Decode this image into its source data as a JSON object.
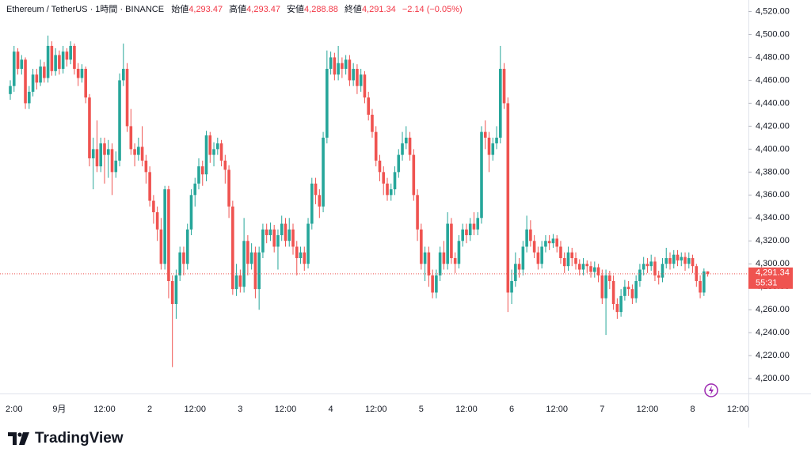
{
  "chart_data": {
    "type": "candlestick",
    "header": {
      "symbol": "Ethereum / TetherUS · 1時間 · BINANCE",
      "open_label": "始値",
      "open_value": "4,293.47",
      "high_label": "高値",
      "high_value": "4,293.47",
      "low_label": "安値",
      "low_value": "4,288.88",
      "close_label": "終値",
      "close_value": "4,291.34",
      "change": "−2.14 (−0.05%)"
    },
    "last_price_label": "4,291.34",
    "countdown": "55:31",
    "up_color": "#26a69a",
    "down_color": "#ef5350",
    "ylim": [
      4187,
      4530
    ],
    "yticks": [
      {
        "value": 4200,
        "label": "4,200.00"
      },
      {
        "value": 4220,
        "label": "4,220.00"
      },
      {
        "value": 4240,
        "label": "4,240.00"
      },
      {
        "value": 4260,
        "label": "4,260.00"
      },
      {
        "value": 4280,
        "label": "4,280.00"
      },
      {
        "value": 4300,
        "label": "4,300.00"
      },
      {
        "value": 4320,
        "label": "4,320.00"
      },
      {
        "value": 4340,
        "label": "4,340.00"
      },
      {
        "value": 4360,
        "label": "4,360.00"
      },
      {
        "value": 4380,
        "label": "4,380.00"
      },
      {
        "value": 4400,
        "label": "4,400.00"
      },
      {
        "value": 4420,
        "label": "4,420.00"
      },
      {
        "value": 4440,
        "label": "4,440.00"
      },
      {
        "value": 4460,
        "label": "4,460.00"
      },
      {
        "value": 4480,
        "label": "4,480.00"
      },
      {
        "value": 4500,
        "label": "4,500.00"
      },
      {
        "value": 4520,
        "label": "4,520.00"
      }
    ],
    "xtick_labels": [
      "2:00",
      "9月",
      "12:00",
      "2",
      "12:00",
      "3",
      "12:00",
      "4",
      "12:00",
      "5",
      "12:00",
      "6",
      "12:00",
      "7",
      "12:00",
      "8",
      "12:00"
    ],
    "open": [
      4448,
      4455,
      4485,
      4470,
      4478,
      4440,
      4450,
      4465,
      4458,
      4472,
      4462,
      4490,
      4468,
      4482,
      4470,
      4485,
      4478,
      4490,
      4470,
      4462,
      4470,
      4445,
      4392,
      4400,
      4385,
      4405,
      4395,
      4400,
      4380,
      4390,
      4460,
      4470,
      4420,
      4400,
      4395,
      4402,
      4390,
      4380,
      4355,
      4345,
      4330,
      4300,
      4365,
      4285,
      4265,
      4290,
      4310,
      4300,
      4330,
      4360,
      4370,
      4385,
      4378,
      4412,
      4395,
      4400,
      4405,
      4390,
      4382,
      4350,
      4278,
      4290,
      4280,
      4320,
      4300,
      4310,
      4278,
      4310,
      4330,
      4325,
      4330,
      4315,
      4325,
      4335,
      4320,
      4330,
      4315,
      4305,
      4310,
      4300,
      4335,
      4370,
      4360,
      4350,
      4410,
      4470,
      4480,
      4465,
      4475,
      4470,
      4478,
      4460,
      4470,
      4455,
      4465,
      4445,
      4430,
      4415,
      4390,
      4380,
      4370,
      4360,
      4365,
      4380,
      4395,
      4405,
      4410,
      4395,
      4360,
      4330,
      4300,
      4310,
      4290,
      4275,
      4290,
      4310,
      4300,
      4335,
      4305,
      4300,
      4320,
      4330,
      4325,
      4335,
      4330,
      4340,
      4415,
      4410,
      4395,
      4405,
      4410,
      4470,
      4440,
      4275,
      4285,
      4300,
      4295,
      4315,
      4330,
      4320,
      4310,
      4300,
      4315,
      4320,
      4318,
      4322,
      4315,
      4305,
      4298,
      4310,
      4305,
      4300,
      4295,
      4300,
      4298,
      4293,
      4297,
      4290,
      4270,
      4290,
      4285,
      4265,
      4258,
      4272,
      4280,
      4278,
      4270,
      4285,
      4295,
      4300,
      4298,
      4302,
      4290,
      4288,
      4300,
      4305,
      4300,
      4308,
      4303,
      4306,
      4300,
      4305,
      4298,
      4285,
      4275,
      4293.47
    ],
    "high": [
      4460,
      4490,
      4488,
      4482,
      4480,
      4455,
      4470,
      4470,
      4478,
      4476,
      4499,
      4494,
      4488,
      4486,
      4490,
      4488,
      4494,
      4492,
      4475,
      4474,
      4472,
      4448,
      4410,
      4425,
      4410,
      4410,
      4408,
      4405,
      4398,
      4466,
      4492,
      4475,
      4435,
      4405,
      4410,
      4420,
      4395,
      4385,
      4360,
      4350,
      4340,
      4368,
      4368,
      4290,
      4295,
      4315,
      4315,
      4335,
      4365,
      4375,
      4392,
      4390,
      4416,
      4415,
      4406,
      4410,
      4408,
      4395,
      4386,
      4355,
      4300,
      4295,
      4340,
      4325,
      4318,
      4315,
      4315,
      4335,
      4335,
      4336,
      4334,
      4330,
      4342,
      4340,
      4340,
      4335,
      4320,
      4315,
      4315,
      4340,
      4375,
      4375,
      4365,
      4415,
      4486,
      4485,
      4484,
      4490,
      4480,
      4482,
      4482,
      4475,
      4474,
      4470,
      4468,
      4450,
      4435,
      4420,
      4395,
      4385,
      4375,
      4370,
      4385,
      4400,
      4415,
      4420,
      4415,
      4400,
      4365,
      4335,
      4315,
      4315,
      4295,
      4295,
      4315,
      4320,
      4345,
      4340,
      4310,
      4325,
      4335,
      4335,
      4340,
      4345,
      4345,
      4420,
      4425,
      4415,
      4410,
      4420,
      4490,
      4475,
      4445,
      4295,
      4310,
      4305,
      4320,
      4342,
      4338,
      4325,
      4315,
      4320,
      4325,
      4325,
      4326,
      4325,
      4320,
      4310,
      4315,
      4314,
      4310,
      4304,
      4305,
      4303,
      4302,
      4302,
      4300,
      4295,
      4295,
      4294,
      4290,
      4270,
      4278,
      4286,
      4285,
      4282,
      4290,
      4300,
      4306,
      4305,
      4308,
      4306,
      4294,
      4305,
      4314,
      4310,
      4312,
      4312,
      4310,
      4310,
      4310,
      4308,
      4300,
      4290,
      4296,
      4293.47
    ],
    "low": [
      4443,
      4450,
      4465,
      4465,
      4435,
      4435,
      4446,
      4452,
      4455,
      4458,
      4458,
      4464,
      4464,
      4465,
      4466,
      4472,
      4474,
      4465,
      4455,
      4458,
      4440,
      4385,
      4365,
      4380,
      4380,
      4370,
      4375,
      4360,
      4375,
      4385,
      4455,
      4415,
      4395,
      4385,
      4390,
      4385,
      4370,
      4350,
      4335,
      4320,
      4295,
      4295,
      4270,
      4210,
      4252,
      4285,
      4290,
      4295,
      4325,
      4350,
      4365,
      4368,
      4372,
      4388,
      4385,
      4395,
      4385,
      4370,
      4340,
      4273,
      4272,
      4275,
      4275,
      4290,
      4295,
      4270,
      4260,
      4305,
      4318,
      4320,
      4310,
      4295,
      4320,
      4315,
      4315,
      4308,
      4290,
      4300,
      4294,
      4296,
      4330,
      4352,
      4340,
      4345,
      4405,
      4465,
      4460,
      4460,
      4462,
      4465,
      4455,
      4455,
      4448,
      4450,
      4440,
      4425,
      4410,
      4385,
      4372,
      4360,
      4355,
      4355,
      4360,
      4375,
      4390,
      4400,
      4390,
      4355,
      4320,
      4295,
      4285,
      4280,
      4270,
      4270,
      4285,
      4295,
      4295,
      4300,
      4292,
      4296,
      4315,
      4318,
      4320,
      4325,
      4325,
      4335,
      4400,
      4380,
      4390,
      4400,
      4405,
      4435,
      4258,
      4265,
      4280,
      4288,
      4290,
      4310,
      4315,
      4305,
      4295,
      4296,
      4310,
      4312,
      4314,
      4310,
      4300,
      4292,
      4294,
      4298,
      4295,
      4290,
      4290,
      4292,
      4288,
      4288,
      4284,
      4265,
      4238,
      4278,
      4260,
      4252,
      4254,
      4268,
      4272,
      4265,
      4266,
      4280,
      4290,
      4292,
      4294,
      4285,
      4282,
      4284,
      4296,
      4295,
      4296,
      4298,
      4298,
      4294,
      4296,
      4292,
      4280,
      4270,
      4272,
      4288.88
    ],
    "close": [
      4455,
      4485,
      4470,
      4478,
      4440,
      4450,
      4465,
      4458,
      4472,
      4462,
      4490,
      4468,
      4482,
      4470,
      4485,
      4478,
      4490,
      4470,
      4462,
      4470,
      4445,
      4392,
      4400,
      4385,
      4405,
      4395,
      4400,
      4380,
      4390,
      4460,
      4470,
      4420,
      4400,
      4395,
      4402,
      4390,
      4380,
      4355,
      4345,
      4330,
      4300,
      4365,
      4285,
      4265,
      4290,
      4310,
      4300,
      4330,
      4360,
      4370,
      4385,
      4378,
      4412,
      4395,
      4400,
      4405,
      4390,
      4382,
      4350,
      4278,
      4290,
      4280,
      4320,
      4300,
      4310,
      4278,
      4310,
      4330,
      4325,
      4330,
      4315,
      4325,
      4335,
      4320,
      4330,
      4315,
      4305,
      4310,
      4300,
      4335,
      4370,
      4360,
      4350,
      4410,
      4470,
      4480,
      4465,
      4475,
      4470,
      4478,
      4460,
      4470,
      4455,
      4465,
      4445,
      4430,
      4415,
      4390,
      4380,
      4370,
      4360,
      4365,
      4380,
      4395,
      4405,
      4410,
      4395,
      4360,
      4330,
      4300,
      4310,
      4290,
      4275,
      4290,
      4310,
      4300,
      4335,
      4305,
      4300,
      4320,
      4330,
      4325,
      4335,
      4330,
      4340,
      4415,
      4410,
      4395,
      4405,
      4410,
      4470,
      4440,
      4275,
      4285,
      4300,
      4295,
      4315,
      4330,
      4320,
      4310,
      4300,
      4315,
      4320,
      4318,
      4322,
      4315,
      4305,
      4298,
      4310,
      4305,
      4300,
      4295,
      4300,
      4298,
      4293,
      4297,
      4290,
      4270,
      4290,
      4285,
      4265,
      4258,
      4272,
      4280,
      4278,
      4270,
      4285,
      4295,
      4300,
      4298,
      4302,
      4290,
      4288,
      4300,
      4305,
      4300,
      4308,
      4303,
      4306,
      4300,
      4305,
      4298,
      4285,
      4275,
      4293.47,
      4291.34
    ]
  },
  "branding": {
    "logo_text": "TradingView"
  }
}
